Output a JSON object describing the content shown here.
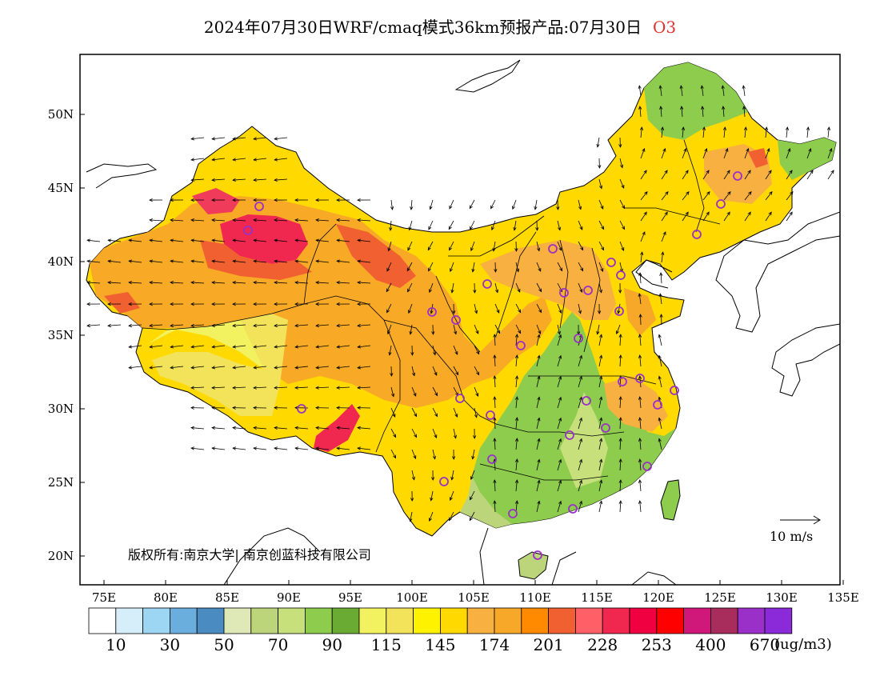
{
  "title": {
    "main": "2024年07月30日WRF/cmaq模式36km预报产品:07月30日",
    "species": "O3"
  },
  "map": {
    "lat_ticks": [
      "50N",
      "45N",
      "40N",
      "35N",
      "30N",
      "25N",
      "20N"
    ],
    "lon_ticks": [
      "75E",
      "80E",
      "85E",
      "90E",
      "95E",
      "100E",
      "105E",
      "110E",
      "115E",
      "120E",
      "125E",
      "130E",
      "135E"
    ],
    "copyright_text": "版权所有:南京大学| 南京创蓝科技有限公司",
    "wind_reference_label": "10 m/s"
  },
  "legend": {
    "colors": [
      "#ffffff",
      "#d6eefa",
      "#9dd6f2",
      "#6aaede",
      "#4a8cc2",
      "#dfe9b8",
      "#bcd57a",
      "#c7e07c",
      "#8dcc4d",
      "#6aab34",
      "#f2f260",
      "#f2e35a",
      "#fff200",
      "#ffd900",
      "#f8b040",
      "#f8a828",
      "#ff8a00",
      "#f06030",
      "#ff6068",
      "#f02850",
      "#f00040",
      "#ff0000",
      "#d0187a",
      "#a82c5c",
      "#9a30c8",
      "#8a2ad8"
    ],
    "labels": [
      "10",
      "30",
      "50",
      "70",
      "90",
      "115",
      "145",
      "174",
      "201",
      "228",
      "253",
      "400",
      "670"
    ],
    "unit": "(ug/m3)"
  }
}
